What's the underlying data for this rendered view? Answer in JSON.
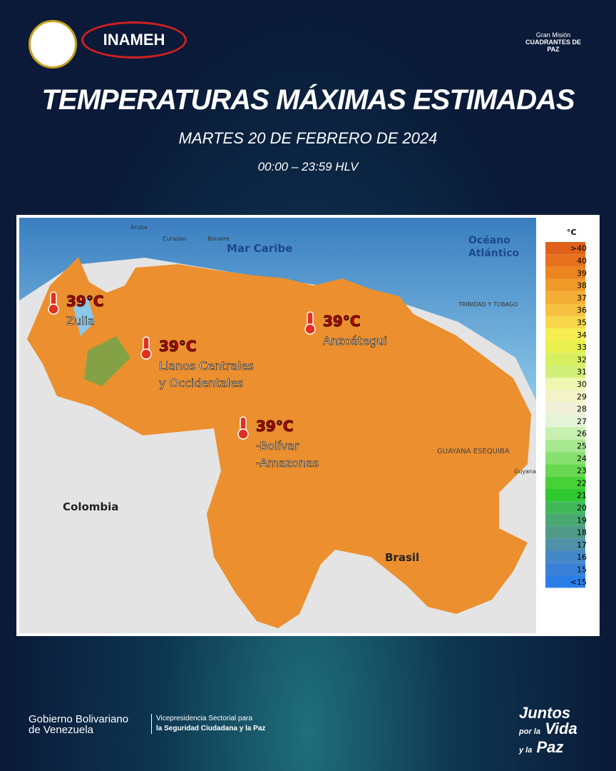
{
  "header": {
    "logo_left": "INAMEH",
    "logo_right": [
      "Gran Misión",
      "CUADRANTES DE PAZ"
    ]
  },
  "title": "TEMPERATURAS MÁXIMAS ESTIMADAS",
  "subtitle": "MARTES 20 DE FEBRERO DE 2024",
  "time": "00:00 – 23:59 HLV",
  "map": {
    "labels": [
      "Mar Caribe",
      "Océano",
      "Atlántico",
      "Colombia",
      "Brasil",
      "GUAYANA ESEQUIBA",
      "TRINIDAD Y TOBAGO",
      "Aruba",
      "Curazao",
      "Bonaire",
      "Guyana"
    ],
    "annotations": [
      {
        "temp": "39°C",
        "lines": [
          "Zulia"
        ]
      },
      {
        "temp": "39°C",
        "lines": [
          "Llanos Centrales",
          "y Occidentales"
        ]
      },
      {
        "temp": "39°C",
        "lines": [
          "Anzoátegui"
        ]
      },
      {
        "temp": "39°C",
        "lines": [
          "-Bolívar",
          "-Amazonas"
        ]
      }
    ]
  },
  "legend": {
    "unit": "°C",
    "items": [
      {
        "label": ">40",
        "color": "#e0611a"
      },
      {
        "label": "40",
        "color": "#e8711d"
      },
      {
        "label": "39",
        "color": "#ec8420"
      },
      {
        "label": "38",
        "color": "#f09a2a"
      },
      {
        "label": "37",
        "color": "#f4ad35"
      },
      {
        "label": "36",
        "color": "#f6c040"
      },
      {
        "label": "35",
        "color": "#f7d84a"
      },
      {
        "label": "34",
        "color": "#f6ee50"
      },
      {
        "label": "33",
        "color": "#e8f050"
      },
      {
        "label": "32",
        "color": "#d8f060"
      },
      {
        "label": "31",
        "color": "#d2f078"
      },
      {
        "label": "30",
        "color": "#eef7b0"
      },
      {
        "label": "29",
        "color": "#f4f2c8"
      },
      {
        "label": "28",
        "color": "#f0f0d8"
      },
      {
        "label": "27",
        "color": "#e4f4d8"
      },
      {
        "label": "26",
        "color": "#c8f0b0"
      },
      {
        "label": "25",
        "color": "#a8e890"
      },
      {
        "label": "24",
        "color": "#88e070"
      },
      {
        "label": "23",
        "color": "#68d850"
      },
      {
        "label": "22",
        "color": "#48d038"
      },
      {
        "label": "21",
        "color": "#30c830"
      },
      {
        "label": "20",
        "color": "#40b85a"
      },
      {
        "label": "19",
        "color": "#48a870"
      },
      {
        "label": "18",
        "color": "#509a88"
      },
      {
        "label": "17",
        "color": "#5090a8"
      },
      {
        "label": "16",
        "color": "#4488c8"
      },
      {
        "label": "15",
        "color": "#3a80d8"
      },
      {
        "label": "<15",
        "color": "#2b7ee8"
      }
    ]
  },
  "footer": {
    "gov": [
      "Gobierno Bolivariano",
      "de Venezuela"
    ],
    "vice": [
      "Vicepresidencia Sectorial para",
      "la Seguridad Ciudadana y la Paz"
    ],
    "slogan": [
      "Juntos",
      "por la",
      "Vida",
      "y la",
      "Paz"
    ]
  }
}
